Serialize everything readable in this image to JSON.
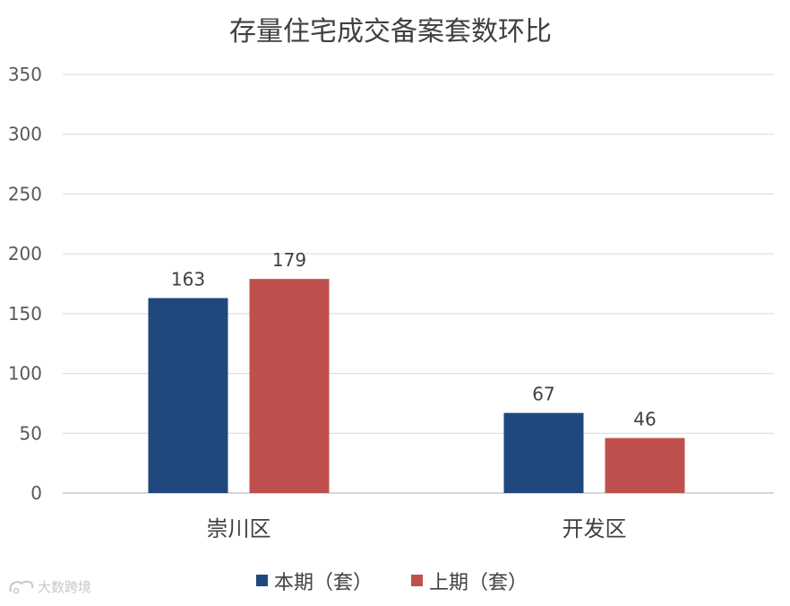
{
  "chart_data": {
    "type": "bar",
    "title": "存量住宅成交备案套数环比",
    "categories": [
      "崇川区",
      "开发区"
    ],
    "series": [
      {
        "name": "本期（套）",
        "values": [
          163,
          67
        ],
        "color": "#1F497D"
      },
      {
        "name": "上期（套）",
        "values": [
          179,
          46
        ],
        "color": "#C0504D"
      }
    ],
    "y_ticks": [
      "0",
      "50",
      "100",
      "150",
      "200",
      "250",
      "300",
      "350"
    ],
    "ylim": [
      0,
      350
    ],
    "grid": true,
    "legend_placement": "bottom",
    "data_labels": true,
    "colors": {
      "gridline": "#D9D9D9",
      "axis": "#BFBFBF",
      "text": "#595959"
    }
  },
  "watermark": {
    "text": "大数跨境"
  }
}
